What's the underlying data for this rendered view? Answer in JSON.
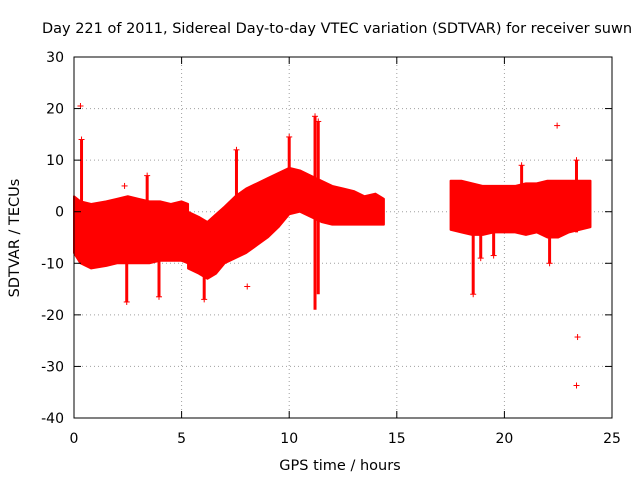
{
  "chart_data": {
    "type": "scatter",
    "title": "Day 221 of 2011, Sidereal Day-to-day VTEC variation (SDTVAR) for receiver suwn",
    "xlabel": "GPS time / hours",
    "ylabel": "SDTVAR / TECUs",
    "xlim": [
      0,
      25
    ],
    "ylim": [
      -40,
      30
    ],
    "xticks": [
      0,
      5,
      10,
      15,
      20,
      25
    ],
    "yticks": [
      -40,
      -30,
      -20,
      -10,
      0,
      10,
      20,
      30
    ],
    "grid": true,
    "marker": "+",
    "series_color": "#ff0000",
    "series": [
      {
        "name": "SDTVAR",
        "band_segments": [
          {
            "x": [
              0.0,
              0.3,
              0.8,
              1.5,
              2.0,
              2.5,
              3.0,
              3.5,
              4.0,
              4.5,
              5.0,
              5.3
            ],
            "lower": [
              -8,
              -10,
              -11,
              -10.5,
              -10,
              -10,
              -10,
              -10,
              -9.5,
              -9.5,
              -9.5,
              -10
            ],
            "upper": [
              3,
              2,
              1.5,
              2,
              2.5,
              3,
              2.5,
              2,
              2,
              1.5,
              2,
              1.5
            ]
          },
          {
            "x": [
              5.3,
              5.8,
              6.2,
              6.6,
              7.0,
              7.5,
              8.0,
              8.5,
              9.0,
              9.5,
              10.0,
              10.5,
              11.0,
              11.5,
              12.0,
              12.5,
              13.0,
              13.5,
              14.0,
              14.4
            ],
            "lower": [
              -11,
              -12,
              -13,
              -12,
              -10,
              -9,
              -8,
              -6.5,
              -5,
              -3,
              -0.5,
              0,
              -1,
              -2,
              -2.5,
              -2.5,
              -2.5,
              -2.5,
              -2.5,
              -2.5
            ],
            "upper": [
              0,
              -1,
              -2,
              -0.5,
              1,
              3,
              4.5,
              5.5,
              6.5,
              7.5,
              8.5,
              8,
              7,
              6,
              5,
              4.5,
              4,
              3,
              3.5,
              2.5
            ]
          },
          {
            "x": [
              17.5,
              18.0,
              18.5,
              19.0,
              19.5,
              20.0,
              20.5,
              21.0,
              21.5,
              22.0,
              22.5,
              23.0,
              23.5,
              24.0
            ],
            "lower": [
              -3.5,
              -4,
              -4.5,
              -4.5,
              -4,
              -4,
              -4,
              -4.5,
              -4,
              -5,
              -5,
              -4,
              -3.5,
              -3
            ],
            "upper": [
              6,
              6,
              5.5,
              5,
              5,
              5,
              5,
              5.5,
              5.5,
              6,
              6,
              6,
              6,
              6
            ]
          }
        ],
        "spikes": [
          {
            "x": 0.35,
            "y": [
              -8,
              14
            ]
          },
          {
            "x": 2.45,
            "y": [
              -10,
              -17.5
            ]
          },
          {
            "x": 3.4,
            "y": [
              2,
              7
            ]
          },
          {
            "x": 3.95,
            "y": [
              -9,
              -16.5
            ]
          },
          {
            "x": 6.05,
            "y": [
              -12,
              -17
            ]
          },
          {
            "x": 7.55,
            "y": [
              2,
              12
            ]
          },
          {
            "x": 10.0,
            "y": [
              6,
              14.5
            ]
          },
          {
            "x": 11.2,
            "y": [
              -19,
              18.5
            ]
          },
          {
            "x": 11.35,
            "y": [
              -16,
              17.5
            ]
          },
          {
            "x": 18.55,
            "y": [
              -4,
              -16
            ]
          },
          {
            "x": 18.9,
            "y": [
              -4,
              -9
            ]
          },
          {
            "x": 19.5,
            "y": [
              -4,
              -8.5
            ]
          },
          {
            "x": 20.8,
            "y": [
              5,
              9
            ]
          },
          {
            "x": 22.1,
            "y": [
              -5,
              -10
            ]
          },
          {
            "x": 23.35,
            "y": [
              -4,
              10
            ]
          }
        ],
        "outliers": [
          {
            "x": 0.3,
            "y": 20.5
          },
          {
            "x": 2.35,
            "y": 5
          },
          {
            "x": 8.05,
            "y": -14.5
          },
          {
            "x": 22.45,
            "y": 16.7
          },
          {
            "x": 23.4,
            "y": -24.3
          },
          {
            "x": 23.35,
            "y": -33.7
          }
        ]
      }
    ]
  }
}
